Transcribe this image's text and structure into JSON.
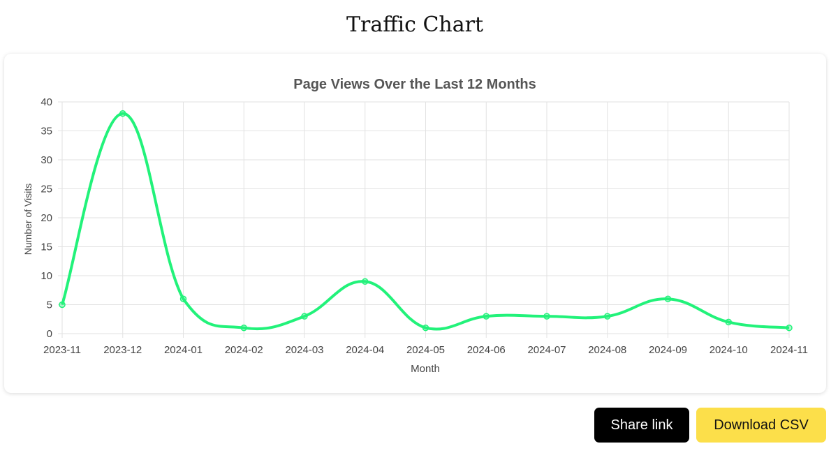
{
  "page": {
    "title": "Traffic Chart"
  },
  "actions": {
    "share_label": "Share link",
    "download_label": "Download CSV"
  },
  "colors": {
    "line": "#22f27a",
    "grid": "#e2e2e2",
    "axis_text": "#444444",
    "share_bg": "#000000",
    "download_bg": "#fcdf4a"
  },
  "chart_data": {
    "type": "line",
    "title": "Page Views Over the Last 12 Months",
    "xlabel": "Month",
    "ylabel": "Number of Visits",
    "categories": [
      "2023-11",
      "2023-12",
      "2024-01",
      "2024-02",
      "2024-03",
      "2024-04",
      "2024-05",
      "2024-06",
      "2024-07",
      "2024-08",
      "2024-09",
      "2024-10",
      "2024-11"
    ],
    "values": [
      5,
      38,
      6,
      1,
      3,
      9,
      1,
      3,
      3,
      3,
      6,
      2,
      1
    ],
    "ylim": [
      0,
      40
    ],
    "yticks": [
      0,
      5,
      10,
      15,
      20,
      25,
      30,
      35,
      40
    ],
    "grid": true,
    "smooth": true
  }
}
